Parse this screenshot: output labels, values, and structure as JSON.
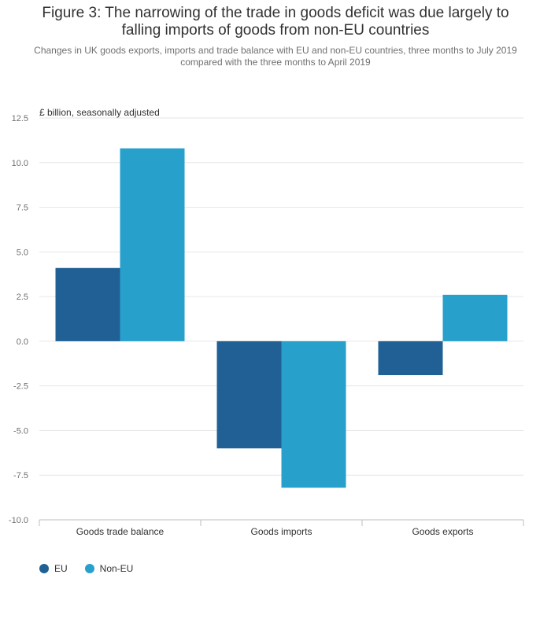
{
  "header": {
    "title_line1": "Figure 3: The narrowing of the trade in goods deficit was due largely to",
    "title_line2": "falling imports of goods from non-EU countries",
    "subtitle_line1": "Changes in UK goods exports, imports and trade balance with EU and non-EU countries, three months to July 2019",
    "subtitle_line2": "compared with the three months to April 2019"
  },
  "chart_data": {
    "type": "bar",
    "unit_label": "£ billion, seasonally adjusted",
    "categories": [
      "Goods trade balance",
      "Goods imports",
      "Goods exports"
    ],
    "series": [
      {
        "name": "EU",
        "color": "#206095",
        "values": [
          4.1,
          -6.0,
          -1.9
        ]
      },
      {
        "name": "Non-EU",
        "color": "#27a0cc",
        "values": [
          10.8,
          -8.2,
          2.6
        ]
      }
    ],
    "ylim": [
      -10.0,
      12.5
    ],
    "yticks": [
      "12.5",
      "10.0",
      "7.5",
      "5.0",
      "2.5",
      "0.0",
      "-2.5",
      "-5.0",
      "-7.5",
      "-10.0"
    ],
    "ytick_values": [
      12.5,
      10.0,
      7.5,
      5.0,
      2.5,
      0.0,
      -2.5,
      -5.0,
      -7.5,
      -10.0
    ],
    "grid": true,
    "legend_position": "bottom-left"
  }
}
